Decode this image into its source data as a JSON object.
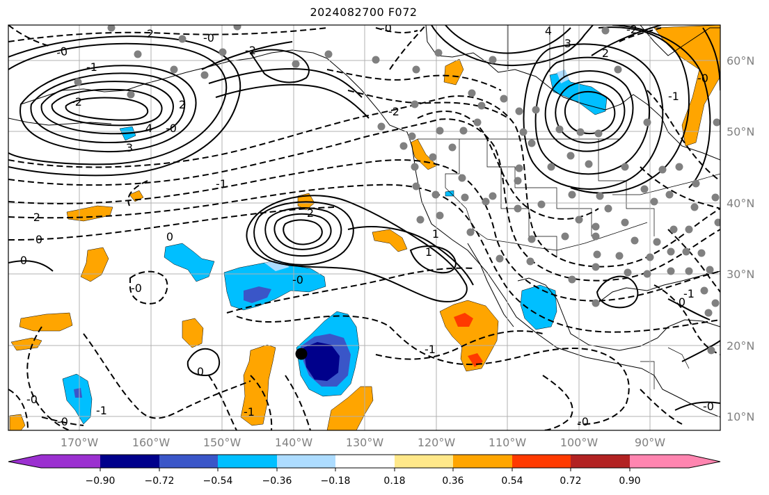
{
  "title": "2024082700 F072",
  "map": {
    "lon_ticks": [
      "170°W",
      "160°W",
      "150°W",
      "140°W",
      "130°W",
      "120°W",
      "110°W",
      "100°W",
      "90°W"
    ],
    "lat_ticks": [
      "60°N",
      "50°N",
      "40°N",
      "30°N",
      "20°N",
      "10°N"
    ],
    "contour_labels": [
      "-0",
      "2",
      "-0",
      "-2",
      "-0",
      "-1",
      "-2",
      "4",
      "3",
      "2",
      "-1",
      "-0",
      "-2",
      "3",
      "4",
      "2",
      "-2",
      "-1",
      "-0",
      "0",
      "-2",
      "2",
      "0",
      "0",
      "-0",
      "-1",
      "-0",
      "-1",
      "1",
      "-0",
      "-1",
      "0",
      "-0",
      "1",
      "-1",
      "-0",
      "0",
      "-0"
    ],
    "colors": {
      "grid": "#b0b0b0",
      "contour": "#000000",
      "station_dot": "#808080",
      "storm_marker": "#000000"
    }
  },
  "colorbar": {
    "ticks": [
      "−0.90",
      "−0.72",
      "−0.54",
      "−0.36",
      "−0.18",
      "0.18",
      "0.36",
      "0.54",
      "0.72",
      "0.90"
    ],
    "colors": [
      "#9b30d0",
      "#00008b",
      "#3a56c8",
      "#00bfff",
      "#addcff",
      "#ffffff",
      "#ffe88a",
      "#ffa500",
      "#ff3a00",
      "#b22222",
      "#ff85b0"
    ]
  }
}
